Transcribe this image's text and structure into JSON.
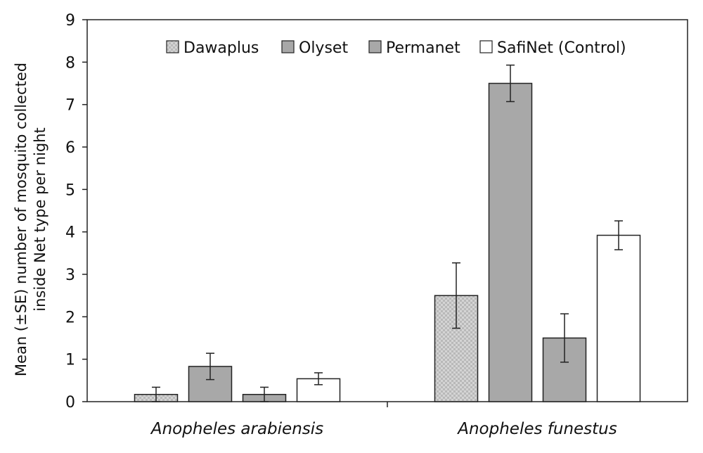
{
  "chart_data": {
    "type": "bar",
    "title": "",
    "xlabel": "",
    "ylabel_lines": [
      "Mean (±SE) number of mosquito collected",
      "inside Net type per night"
    ],
    "categories": [
      "Anopheles arabiensis",
      "Anopheles funestus"
    ],
    "ylim": [
      0,
      9
    ],
    "yticks": [
      0,
      1,
      2,
      3,
      4,
      5,
      6,
      7,
      8,
      9
    ],
    "grid": false,
    "legend_position": "top",
    "series": [
      {
        "name": "Dawaplus",
        "values": [
          0.17,
          2.5
        ],
        "errors": [
          0.17,
          0.77
        ],
        "fill": "#c9c9c9",
        "pattern": "checker"
      },
      {
        "name": "Olyset",
        "values": [
          0.83,
          7.5
        ],
        "errors": [
          0.31,
          0.43
        ],
        "fill": "#a8a8a8",
        "pattern": "solid"
      },
      {
        "name": "Permanet",
        "values": [
          0.17,
          1.5
        ],
        "errors": [
          0.17,
          0.57
        ],
        "fill": "#a8a8a8",
        "pattern": "solid"
      },
      {
        "name": "SafiNet (Control)",
        "values": [
          0.54,
          3.92
        ],
        "errors": [
          0.14,
          0.34
        ],
        "fill": "#ffffff",
        "pattern": "solid"
      }
    ]
  }
}
